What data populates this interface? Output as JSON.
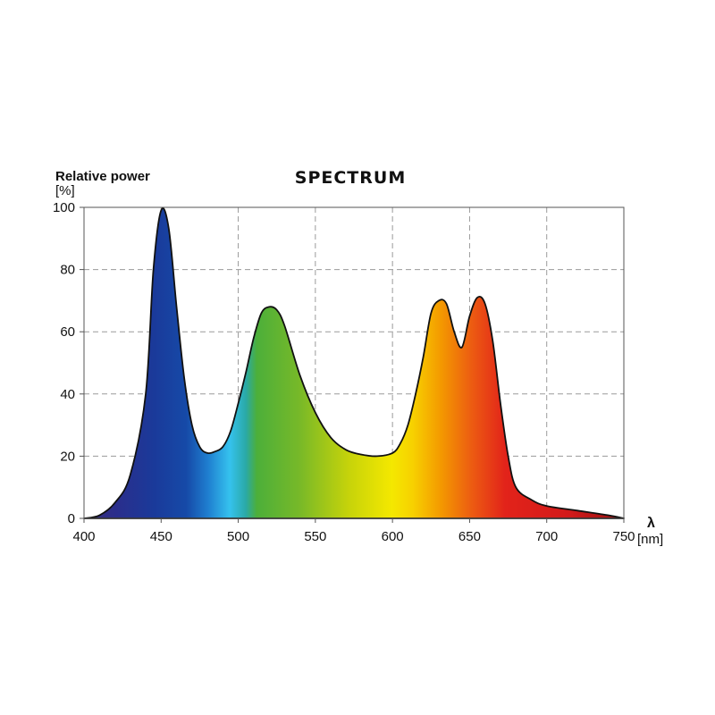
{
  "chart_data": {
    "type": "area",
    "title": "SPECTRUM",
    "ylabel": "Relative power",
    "yunit": "[%]",
    "xlabel": "λ",
    "xunit": "[nm]",
    "xlim": [
      400,
      750
    ],
    "ylim": [
      0,
      100
    ],
    "xticks": [
      400,
      450,
      500,
      550,
      600,
      650,
      700,
      750
    ],
    "yticks": [
      0,
      20,
      40,
      60,
      80,
      100
    ],
    "grid": true,
    "fill": "visible-spectrum gradient",
    "x": [
      400,
      410,
      420,
      430,
      440,
      445,
      450,
      455,
      460,
      465,
      470,
      475,
      480,
      485,
      490,
      495,
      500,
      505,
      510,
      515,
      520,
      525,
      530,
      540,
      550,
      560,
      570,
      580,
      590,
      600,
      605,
      610,
      615,
      620,
      625,
      630,
      635,
      640,
      645,
      650,
      655,
      660,
      665,
      670,
      675,
      680,
      690,
      700,
      720,
      740,
      750
    ],
    "values": [
      0,
      1,
      5,
      14,
      40,
      80,
      99,
      93,
      68,
      45,
      30,
      23,
      21,
      21.5,
      23,
      28,
      37,
      47,
      58,
      66,
      68,
      67,
      62,
      46,
      34,
      26,
      22,
      20.5,
      20,
      21,
      24,
      30,
      40,
      52,
      66,
      70,
      69,
      60,
      55,
      65,
      71,
      69,
      57,
      37,
      20,
      10,
      6,
      4,
      2.5,
      1,
      0
    ]
  }
}
